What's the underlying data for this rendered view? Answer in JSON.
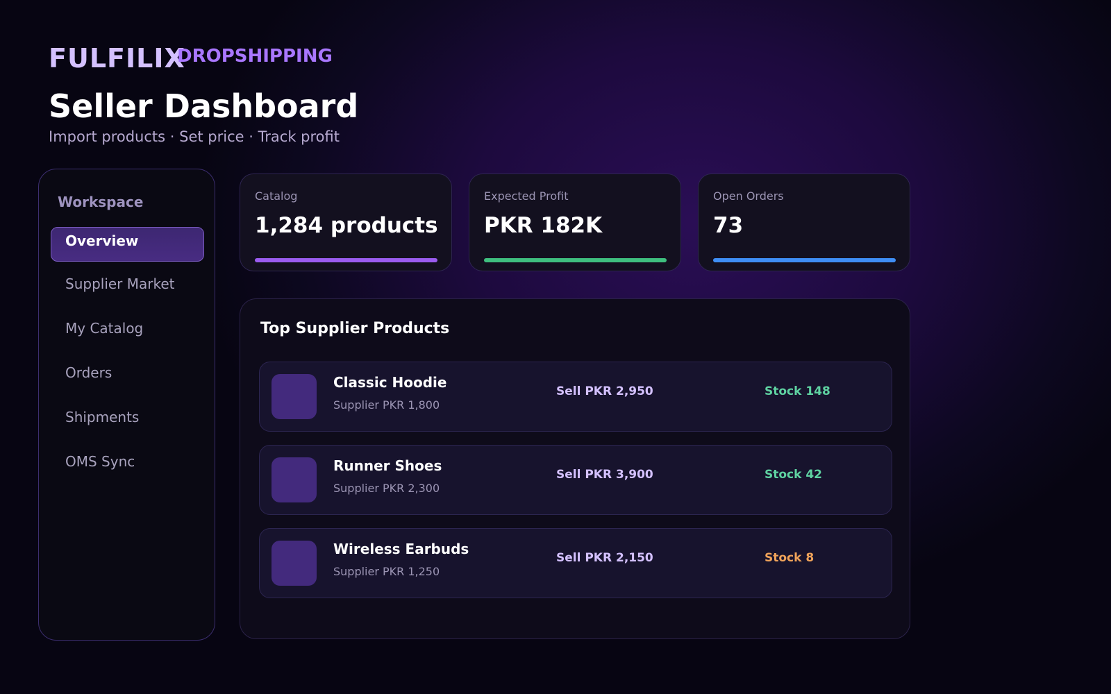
{
  "brand": {
    "name": "FULFILIX",
    "tagline": "DROPSHIPPING"
  },
  "header": {
    "title": "Seller Dashboard",
    "subtitle": "Import products · Set price · Track profit"
  },
  "sidebar": {
    "heading": "Workspace",
    "items": [
      {
        "label": "Overview",
        "active": true
      },
      {
        "label": "Supplier Market",
        "active": false
      },
      {
        "label": "My Catalog",
        "active": false
      },
      {
        "label": "Orders",
        "active": false
      },
      {
        "label": "Shipments",
        "active": false
      },
      {
        "label": "OMS Sync",
        "active": false
      }
    ]
  },
  "stats": [
    {
      "label": "Catalog",
      "value": "1,284 products",
      "bar_color": "#9b5cf0",
      "bar_fill": 1.0
    },
    {
      "label": "Expected Profit",
      "value": "PKR 182K",
      "bar_color": "#3fbf7f",
      "bar_fill": 1.0
    },
    {
      "label": "Open Orders",
      "value": "73",
      "bar_color": "#3f8ef5",
      "bar_fill": 1.0
    }
  ],
  "products": {
    "title": "Top Supplier Products",
    "items": [
      {
        "name": "Classic Hoodie",
        "supplier": "Supplier PKR 1,800",
        "sell": "Sell PKR 2,950",
        "stock": "Stock 148",
        "stock_color": "#5fd3a2"
      },
      {
        "name": "Runner Shoes",
        "supplier": "Supplier PKR 2,300",
        "sell": "Sell PKR 3,900",
        "stock": "Stock 42",
        "stock_color": "#5fd3a2"
      },
      {
        "name": "Wireless Earbuds",
        "supplier": "Supplier PKR 1,250",
        "sell": "Sell PKR 2,150",
        "stock": "Stock 8",
        "stock_color": "#f0a35a"
      }
    ]
  }
}
